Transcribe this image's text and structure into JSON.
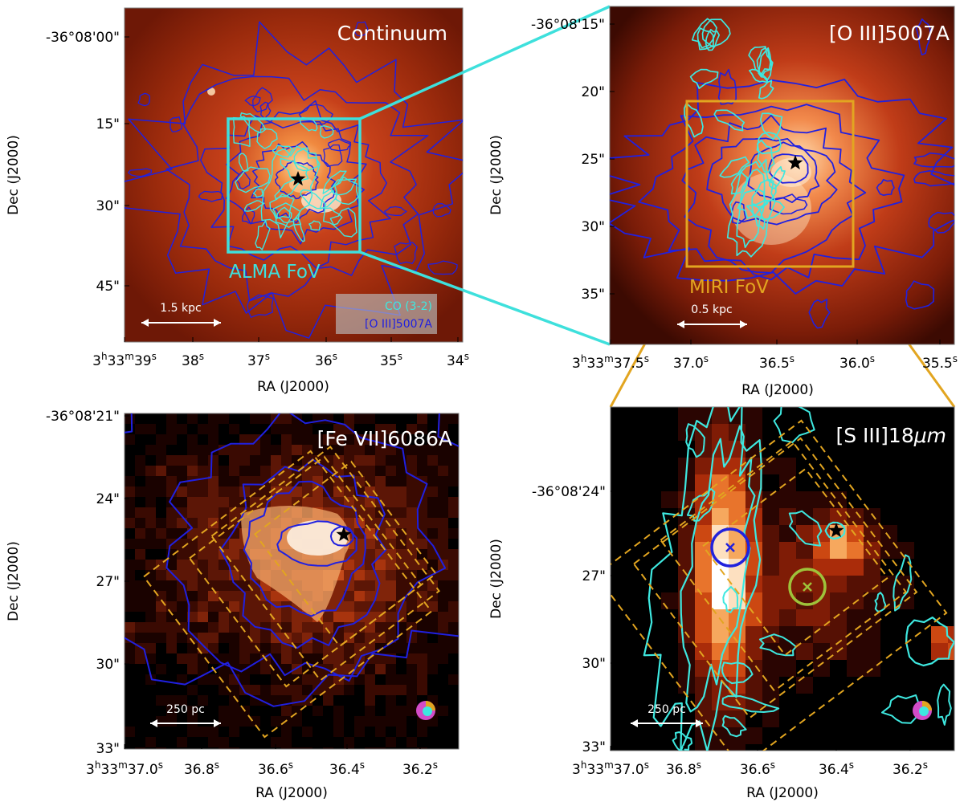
{
  "colors": {
    "co_contour": "#3ee8e0",
    "oiii_contour": "#2020e0",
    "alma_box": "#3ee0dc",
    "miri_box": "#e2a520",
    "aperture_blue": "#2222dd",
    "aperture_green": "#9ec23a"
  },
  "chart_data": [
    {
      "type": "heatmap",
      "panel": "top-left",
      "title": "Continuum",
      "xlabel": "RA (J2000)",
      "ylabel": "Dec (J2000)",
      "x_ticks": [
        {
          "label": "3h33m39s",
          "main": "3",
          "sup1": "h",
          "mid": "33",
          "sup2": "m",
          "num": "39",
          "sup3": "s"
        },
        {
          "label": "38s",
          "num": "38",
          "sup3": "s"
        },
        {
          "label": "37s",
          "num": "37",
          "sup3": "s"
        },
        {
          "label": "36s",
          "num": "36",
          "sup3": "s"
        },
        {
          "label": "35s",
          "num": "35",
          "sup3": "s"
        },
        {
          "label": "34s",
          "num": "34",
          "sup3": "s"
        }
      ],
      "y_ticks": [
        "-36°08'00\"",
        "15\"",
        "30\"",
        "45\""
      ],
      "fov_label": "ALMA FoV",
      "scale_bar": "1.5 kpc",
      "legend": [
        "CO (3-2)",
        "[O III]5007A"
      ],
      "contours": [
        "CO (3-2)",
        "[O III]5007A"
      ]
    },
    {
      "type": "heatmap",
      "panel": "top-right",
      "title": "[O III]5007A",
      "xlabel": "RA (J2000)",
      "ylabel": "Dec (J2000)",
      "x_ticks": [
        {
          "label": "3h33m37.5s",
          "main": "3",
          "sup1": "h",
          "mid": "33",
          "sup2": "m",
          "num": "37.5",
          "sup3": "s"
        },
        {
          "label": "37.0s",
          "num": "37.0",
          "sup3": "s"
        },
        {
          "label": "36.5s",
          "num": "36.5",
          "sup3": "s"
        },
        {
          "label": "36.0s",
          "num": "36.0",
          "sup3": "s"
        },
        {
          "label": "35.5s",
          "num": "35.5",
          "sup3": "s"
        }
      ],
      "y_ticks": [
        "-36°08'15\"",
        "20\"",
        "25\"",
        "30\"",
        "35\""
      ],
      "fov_label": "MIRI FoV",
      "scale_bar": "0.5 kpc"
    },
    {
      "type": "heatmap",
      "panel": "bottom-left",
      "title": "[Fe VII]6086A",
      "xlabel": "RA (J2000)",
      "ylabel": "Dec (J2000)",
      "x_ticks": [
        {
          "label": "3h33m37.0s",
          "main": "3",
          "sup1": "h",
          "mid": "33",
          "sup2": "m",
          "num": "37.0",
          "sup3": "s"
        },
        {
          "label": "36.8s",
          "num": "36.8",
          "sup3": "s"
        },
        {
          "label": "36.6s",
          "num": "36.6",
          "sup3": "s"
        },
        {
          "label": "36.4s",
          "num": "36.4",
          "sup3": "s"
        },
        {
          "label": "36.2s",
          "num": "36.2",
          "sup3": "s"
        }
      ],
      "y_ticks": [
        "-36°08'21\"",
        "24\"",
        "27\"",
        "30\"",
        "33\""
      ],
      "scale_bar": "250 pc"
    },
    {
      "type": "heatmap",
      "panel": "bottom-right",
      "title": "[S III]18μm",
      "title_main": "[S III]18",
      "title_unit": "μm",
      "xlabel": "RA (J2000)",
      "ylabel": "Dec (J2000)",
      "x_ticks": [
        {
          "label": "3h33m37.0s",
          "main": "3",
          "sup1": "h",
          "mid": "33",
          "sup2": "m",
          "num": "37.0",
          "sup3": "s"
        },
        {
          "label": "36.8s",
          "num": "36.8",
          "sup3": "s"
        },
        {
          "label": "36.6s",
          "num": "36.6",
          "sup3": "s"
        },
        {
          "label": "36.4s",
          "num": "36.4",
          "sup3": "s"
        },
        {
          "label": "36.2s",
          "num": "36.2",
          "sup3": "s"
        }
      ],
      "y_ticks": [
        "-36°08'24\"",
        "27\"",
        "30\"",
        "33\""
      ],
      "scale_bar": "250 pc"
    }
  ]
}
